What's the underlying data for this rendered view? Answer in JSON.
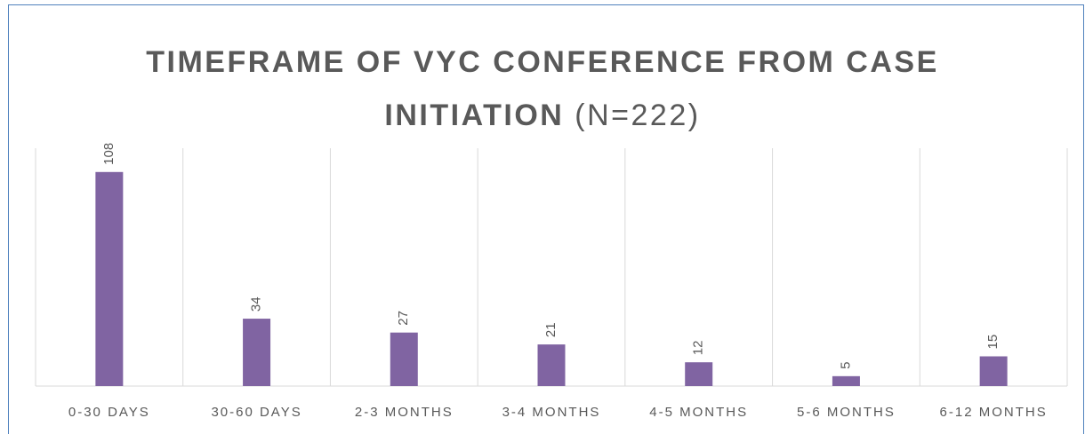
{
  "chart_data": {
    "type": "bar",
    "title": "TIMEFRAME OF VYC CONFERENCE FROM CASE INITIATION",
    "title_note": "(N=222)",
    "categories": [
      "0-30 DAYS",
      "30-60 DAYS",
      "2-3 MONTHS",
      "3-4 MONTHS",
      "4-5 MONTHS",
      "5-6 MONTHS",
      "6-12 MONTHS"
    ],
    "values": [
      108,
      34,
      27,
      21,
      12,
      5,
      15
    ],
    "color": "#8064a2",
    "ylim": [
      0,
      120
    ],
    "grid": true,
    "data_labels": true
  }
}
